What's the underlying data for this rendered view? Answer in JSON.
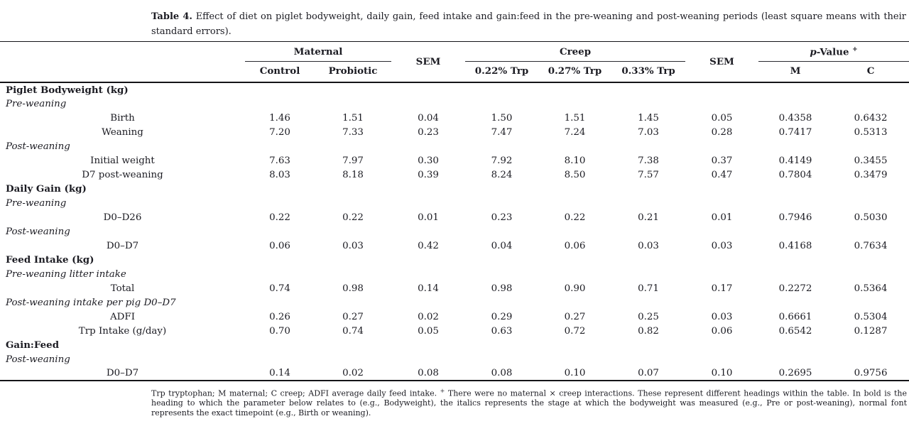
{
  "caption": {
    "label": "Table 4.",
    "text": " Effect of diet on piglet bodyweight, daily gain, feed intake and gain:feed in the pre-weaning and post-weaning periods (least square means with their standard errors)."
  },
  "table": {
    "header": {
      "maternal": "Maternal",
      "sem1": "SEM",
      "creep": "Creep",
      "sem2": "SEM",
      "pvalue_italic": "p",
      "pvalue_rest": "-Value ",
      "pvalue_sup": "+",
      "subcolumns": [
        "Control",
        "Probiotic",
        "0.22% Trp",
        "0.27% Trp",
        "0.33% Trp",
        "M",
        "C"
      ]
    },
    "rows": [
      {
        "type": "section",
        "label": "Piglet Bodyweight (kg)"
      },
      {
        "type": "stage",
        "label": "Pre-weaning"
      },
      {
        "type": "data",
        "label": "Birth",
        "values": [
          "1.46",
          "1.51",
          "0.04",
          "1.50",
          "1.51",
          "1.45",
          "0.05",
          "0.4358",
          "0.6432"
        ]
      },
      {
        "type": "data",
        "label": "Weaning",
        "values": [
          "7.20",
          "7.33",
          "0.23",
          "7.47",
          "7.24",
          "7.03",
          "0.28",
          "0.7417",
          "0.5313"
        ]
      },
      {
        "type": "stage",
        "label": "Post-weaning"
      },
      {
        "type": "data",
        "label": "Initial weight",
        "values": [
          "7.63",
          "7.97",
          "0.30",
          "7.92",
          "8.10",
          "7.38",
          "0.37",
          "0.4149",
          "0.3455"
        ]
      },
      {
        "type": "data",
        "label": "D7 post-weaning",
        "values": [
          "8.03",
          "8.18",
          "0.39",
          "8.24",
          "8.50",
          "7.57",
          "0.47",
          "0.7804",
          "0.3479"
        ]
      },
      {
        "type": "section",
        "label": "Daily Gain (kg)"
      },
      {
        "type": "stage",
        "label": "Pre-weaning"
      },
      {
        "type": "data",
        "label": "D0–D26",
        "values": [
          "0.22",
          "0.22",
          "0.01",
          "0.23",
          "0.22",
          "0.21",
          "0.01",
          "0.7946",
          "0.5030"
        ]
      },
      {
        "type": "stage",
        "label": "Post-weaning"
      },
      {
        "type": "data",
        "label": "D0–D7",
        "values": [
          "0.06",
          "0.03",
          "0.42",
          "0.04",
          "0.06",
          "0.03",
          "0.03",
          "0.4168",
          "0.7634"
        ]
      },
      {
        "type": "section",
        "label": "Feed Intake (kg)"
      },
      {
        "type": "stage",
        "label": "Pre-weaning litter intake"
      },
      {
        "type": "data",
        "label": "Total",
        "values": [
          "0.74",
          "0.98",
          "0.14",
          "0.98",
          "0.90",
          "0.71",
          "0.17",
          "0.2272",
          "0.5364"
        ]
      },
      {
        "type": "stage",
        "label": "Post-weaning intake per pig D0–D7"
      },
      {
        "type": "data",
        "label": "ADFI",
        "values": [
          "0.26",
          "0.27",
          "0.02",
          "0.29",
          "0.27",
          "0.25",
          "0.03",
          "0.6661",
          "0.5304"
        ]
      },
      {
        "type": "data",
        "label": "Trp Intake (g/day)",
        "values": [
          "0.70",
          "0.74",
          "0.05",
          "0.63",
          "0.72",
          "0.82",
          "0.06",
          "0.6542",
          "0.1287"
        ]
      },
      {
        "type": "section",
        "label": "Gain:Feed"
      },
      {
        "type": "stage",
        "label": "Post-weaning"
      },
      {
        "type": "data",
        "label": "D0–D7",
        "values": [
          "0.14",
          "0.02",
          "0.08",
          "0.08",
          "0.10",
          "0.07",
          "0.10",
          "0.2695",
          "0.9756"
        ]
      }
    ]
  },
  "footnote": {
    "part1": "Trp tryptophan; M maternal; C creep; ADFI average daily feed intake. ",
    "sup": "+",
    "part2": " There were no maternal × creep interactions. These represent different headings within the table. In bold is the heading to which the parameter below relates to (e.g., Bodyweight), the italics represents the stage at which the bodyweight was measured (e.g., Pre or post-weaning), normal font represents the exact timepoint (e.g., Birth or weaning)."
  }
}
